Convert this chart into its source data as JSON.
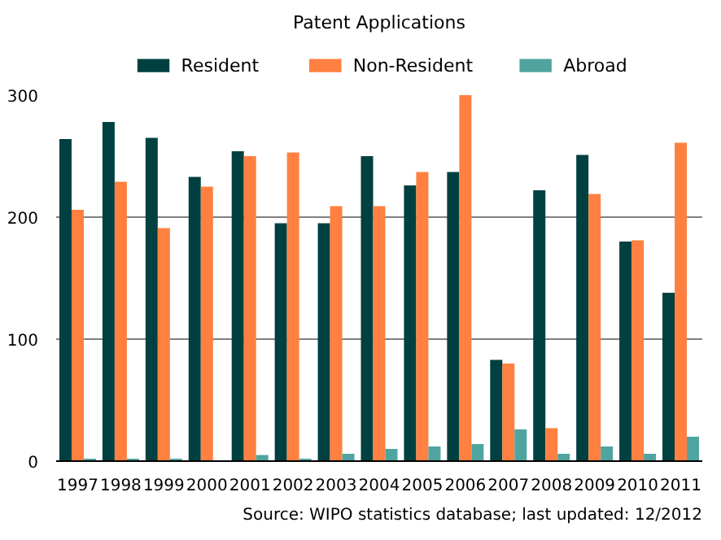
{
  "chart_data": {
    "type": "bar",
    "title": "Patent Applications",
    "categories": [
      "1997",
      "1998",
      "1999",
      "2000",
      "2001",
      "2002",
      "2003",
      "2004",
      "2005",
      "2006",
      "2007",
      "2008",
      "2009",
      "2010",
      "2011"
    ],
    "series": [
      {
        "name": "Resident",
        "color": "#004040",
        "values": [
          264,
          278,
          265,
          233,
          254,
          195,
          195,
          250,
          226,
          237,
          83,
          222,
          251,
          180,
          138
        ]
      },
      {
        "name": "Non-Resident",
        "color": "#ff8040",
        "values": [
          206,
          229,
          191,
          225,
          250,
          253,
          209,
          209,
          237,
          300,
          80,
          27,
          219,
          181,
          261
        ]
      },
      {
        "name": "Abroad",
        "color": "#50a4a0",
        "values": [
          2,
          2,
          2,
          0,
          5,
          2,
          6,
          10,
          12,
          14,
          26,
          6,
          12,
          6,
          20
        ]
      }
    ],
    "ylim": [
      0,
      300
    ],
    "yticks": [
      0,
      100,
      200,
      300
    ],
    "grid": "y",
    "legend": "top",
    "annotations": [
      "Source: WIPO statistics database; last updated: 12/2012"
    ]
  }
}
